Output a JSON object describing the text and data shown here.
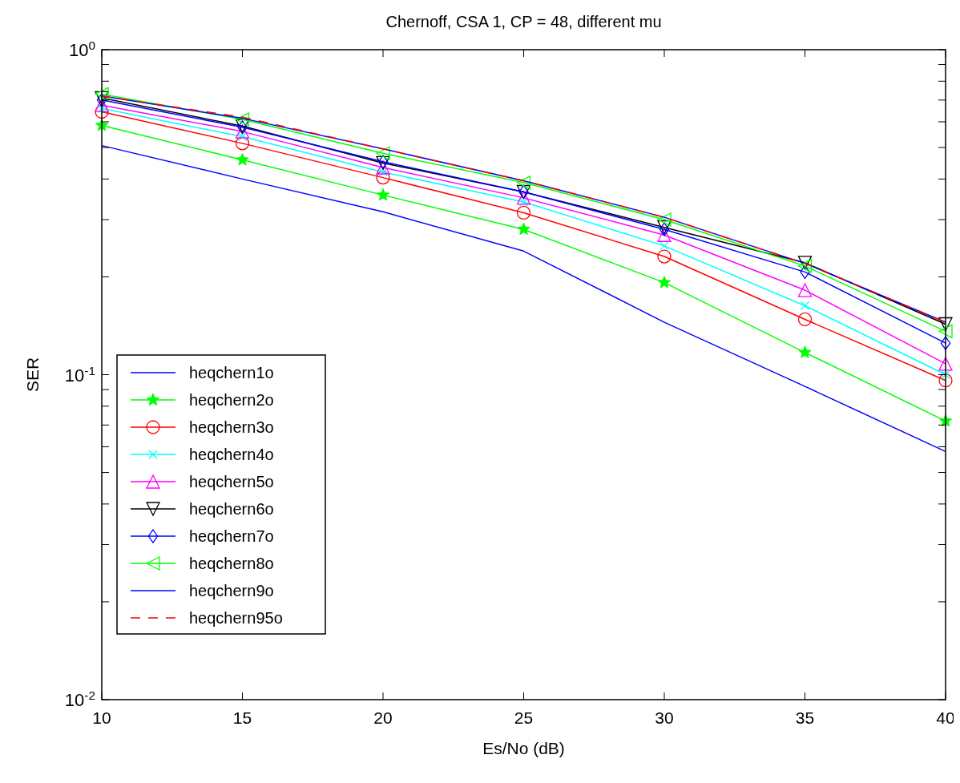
{
  "chart_data": {
    "type": "line",
    "title": "Chernoff, CSA 1, CP = 48, different mu",
    "xlabel": "Es/No (dB)",
    "ylabel": "SER",
    "x": [
      10,
      15,
      20,
      25,
      30,
      35,
      40
    ],
    "xlim": [
      10,
      40
    ],
    "xticks": [
      10,
      15,
      20,
      25,
      30,
      35,
      40
    ],
    "ylim": [
      0.01,
      1
    ],
    "log": true,
    "yticks": [
      {
        "value": 0.01,
        "label": "10$^{-2}$"
      },
      {
        "value": 0.02,
        "label": null
      },
      {
        "value": 0.03,
        "label": null
      },
      {
        "value": 0.04,
        "label": null
      },
      {
        "value": 0.05,
        "label": null
      },
      {
        "value": 0.06,
        "label": null
      },
      {
        "value": 0.07,
        "label": null
      },
      {
        "value": 0.08,
        "label": null
      },
      {
        "value": 0.09,
        "label": null
      },
      {
        "value": 0.1,
        "label": "10$^{-1}$"
      },
      {
        "value": 0.2,
        "label": null
      },
      {
        "value": 0.3,
        "label": null
      },
      {
        "value": 0.4,
        "label": null
      },
      {
        "value": 0.5,
        "label": null
      },
      {
        "value": 0.6,
        "label": null
      },
      {
        "value": 0.7,
        "label": null
      },
      {
        "value": 0.8,
        "label": null
      },
      {
        "value": 0.9,
        "label": null
      },
      {
        "value": 1,
        "label": "10$^{0}$"
      }
    ],
    "grid": false,
    "legend": "bottom left",
    "series": [
      {
        "name": "heqchern1o",
        "color": "#0000ff",
        "marker": "none",
        "line_style": "solid",
        "values": [
          0.507,
          0.4,
          0.317,
          0.24,
          0.145,
          0.092,
          0.058
        ]
      },
      {
        "name": "heqchern2o",
        "color": "#00ff00",
        "marker": "star",
        "line_style": "solid",
        "values": [
          0.585,
          0.458,
          0.357,
          0.28,
          0.192,
          0.117,
          0.072
        ]
      },
      {
        "name": "heqchern3o",
        "color": "#ff0000",
        "marker": "circle",
        "line_style": "solid",
        "values": [
          0.644,
          0.515,
          0.404,
          0.315,
          0.231,
          0.148,
          0.096
        ]
      },
      {
        "name": "heqchern4o",
        "color": "#00ffff",
        "marker": "cross",
        "line_style": "solid",
        "values": [
          0.66,
          0.54,
          0.42,
          0.34,
          0.249,
          0.163,
          0.1
        ]
      },
      {
        "name": "heqchern5o",
        "color": "#ff00ff",
        "marker": "triangle",
        "line_style": "solid",
        "values": [
          0.675,
          0.56,
          0.434,
          0.35,
          0.269,
          0.182,
          0.108
        ]
      },
      {
        "name": "heqchern6o",
        "color": "#000000",
        "marker": "triangle-down",
        "line_style": "solid",
        "values": [
          0.71,
          0.582,
          0.448,
          0.365,
          0.284,
          0.221,
          0.143
        ]
      },
      {
        "name": "heqchern7o",
        "color": "#0000ff",
        "marker": "diamond",
        "line_style": "solid",
        "values": [
          0.7,
          0.577,
          0.452,
          0.365,
          0.28,
          0.207,
          0.125
        ]
      },
      {
        "name": "heqchern8o",
        "color": "#00ff00",
        "marker": "triangle-left",
        "line_style": "solid",
        "values": [
          0.73,
          0.61,
          0.48,
          0.39,
          0.3,
          0.216,
          0.136
        ]
      },
      {
        "name": "heqchern9o",
        "color": "#0000ff",
        "marker": "none",
        "line_style": "solid",
        "values": [
          0.72,
          0.615,
          0.495,
          0.395,
          0.305,
          0.22,
          0.145
        ]
      },
      {
        "name": "heqchern95o",
        "color": "#ff0000",
        "marker": "none",
        "line_style": "dashed",
        "values": [
          0.72,
          0.62,
          0.495,
          0.395,
          0.305,
          0.22,
          0.145
        ]
      }
    ]
  }
}
